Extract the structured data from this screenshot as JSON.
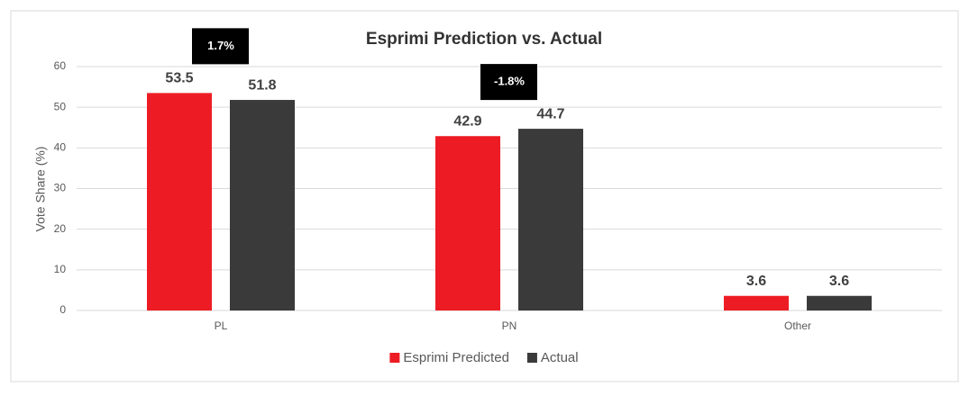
{
  "chart_data": {
    "type": "bar",
    "title": "Esprimi Prediction vs. Actual",
    "y_label": "Vote Share (%)",
    "categories": [
      "PL",
      "PN",
      "Other"
    ],
    "series": [
      {
        "name": "Esprimi Predicted",
        "color": "#ed1c24",
        "values": [
          53.5,
          42.9,
          3.6
        ]
      },
      {
        "name": "Actual",
        "color": "#3a3a3a",
        "values": [
          51.8,
          44.7,
          3.6
        ]
      }
    ],
    "ylim": [
      0,
      60
    ],
    "yticks": [
      0,
      10,
      20,
      30,
      40,
      50,
      60
    ],
    "grid": true,
    "legend": "bottom",
    "annotations": [
      {
        "category": "PL",
        "text": "1.7%"
      },
      {
        "category": "PN",
        "text": "-1.8%"
      }
    ]
  }
}
